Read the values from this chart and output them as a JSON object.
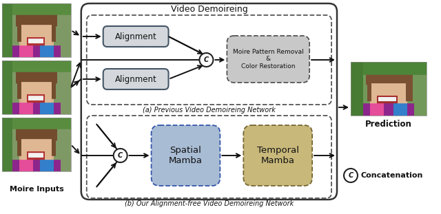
{
  "title": "Video Demoireing",
  "subtitle_a": "(a) Previous Video Demoireing Network",
  "subtitle_b": "(b) Our Alignment-free Video Demoireing Network",
  "label_inputs": "Moire Inputs",
  "label_prediction": "Prediction",
  "label_concat": "Concatenation",
  "box_alignment": "Alignment",
  "box_moire": "Moire Pattern Removal\n&\nColor Restoration",
  "box_spatial": "Spatial\nMamba",
  "box_temporal": "Temporal\nMamba",
  "color_bg": "#ffffff",
  "color_alignment_fill": "#d4d8dc",
  "color_moire_fill": "#c8c8c8",
  "color_spatial_fill": "#a8bcd4",
  "color_temporal_fill": "#c8b87a",
  "color_arrow": "#111111",
  "color_text": "#111111",
  "figsize": [
    6.4,
    3.11
  ],
  "dpi": 100
}
